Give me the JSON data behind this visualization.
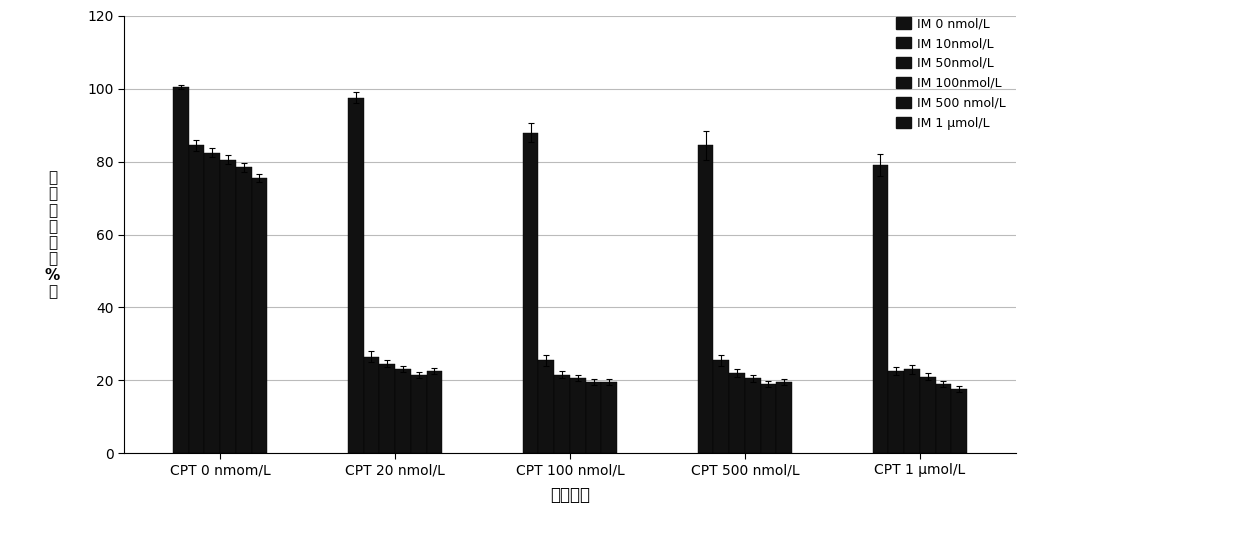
{
  "groups": [
    "CPT 0 nmom/L",
    "CPT 20 nmol/L",
    "CPT 100 nmol/L",
    "CPT 500 nmol/L",
    "CPT 1 μmol/L"
  ],
  "legend_labels": [
    "IM 0 nmol/L",
    "IM 10nmol/L",
    "IM 50nmol/L",
    "IM 100nmol/L",
    "IM 500 nmol/L",
    "IM 1 μmol/L"
  ],
  "values": [
    [
      100.5,
      84.5,
      82.5,
      80.5,
      78.5,
      75.5
    ],
    [
      97.5,
      26.5,
      24.5,
      23.0,
      21.5,
      22.5
    ],
    [
      88.0,
      25.5,
      21.5,
      20.5,
      19.5,
      19.5
    ],
    [
      84.5,
      25.5,
      22.0,
      20.5,
      19.0,
      19.5
    ],
    [
      79.0,
      22.5,
      23.0,
      21.0,
      19.0,
      17.5
    ]
  ],
  "errors": [
    [
      0.5,
      1.5,
      1.2,
      1.2,
      1.2,
      1.2
    ],
    [
      1.5,
      1.5,
      1.0,
      0.8,
      0.8,
      0.8
    ],
    [
      2.5,
      1.5,
      1.0,
      0.8,
      0.8,
      0.8
    ],
    [
      4.0,
      1.5,
      1.2,
      1.0,
      0.8,
      0.8
    ],
    [
      3.0,
      1.2,
      1.2,
      1.0,
      0.8,
      0.8
    ]
  ],
  "bar_color": "#111111",
  "bar_edge_color": "#000000",
  "ylabel_chars": [
    "细",
    "胞",
    "存",
    "活",
    "率",
    "（",
    "%",
    "）"
  ],
  "xlabel": "药物浓度",
  "ylim": [
    0,
    120
  ],
  "yticks": [
    0,
    20,
    40,
    60,
    80,
    100,
    120
  ],
  "background_color": "#ffffff",
  "grid_color": "#bbbbbb",
  "figsize": [
    12.39,
    5.33
  ],
  "dpi": 100
}
